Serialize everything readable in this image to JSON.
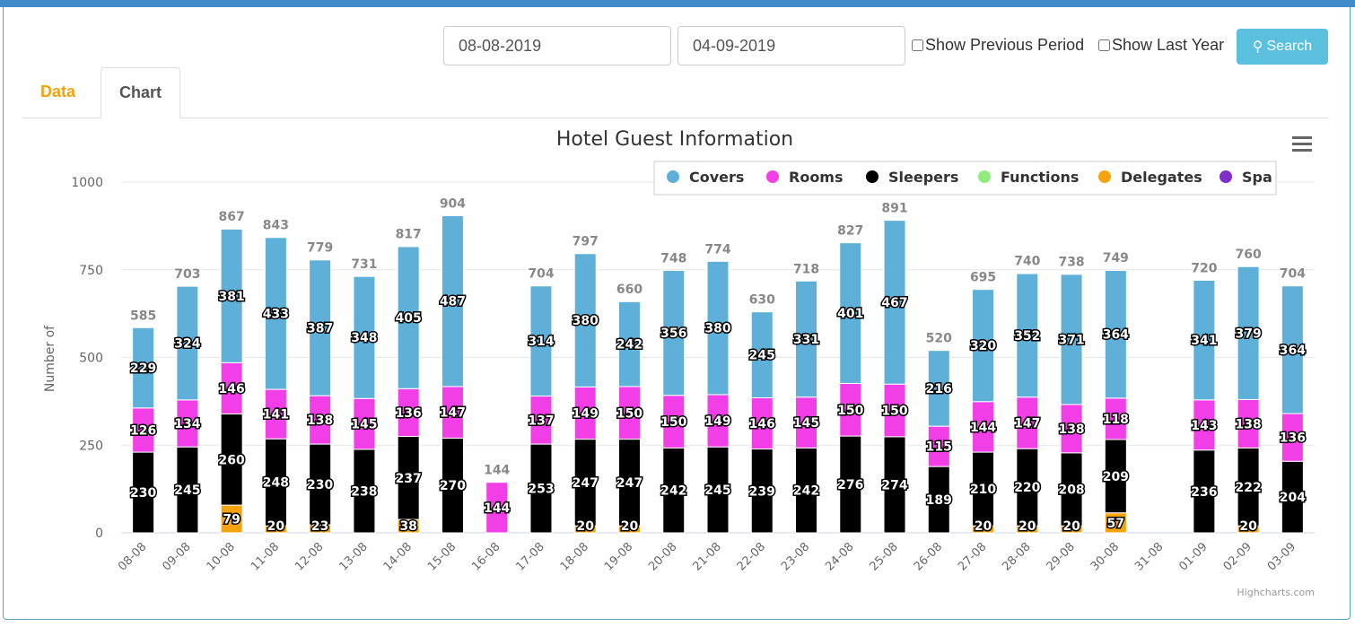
{
  "header": {
    "start_date": "08-08-2019",
    "end_date": "04-09-2019",
    "show_previous_period": "Show Previous Period",
    "show_last_year": "Show Last Year",
    "search_label": "Search"
  },
  "tabs": [
    {
      "label": "Data"
    },
    {
      "label": "Chart"
    }
  ],
  "credits": "Highcharts.com",
  "chart_data": {
    "type": "bar",
    "stacked": true,
    "title": "Hotel Guest Information",
    "ylabel": "Number of",
    "xlabel": "",
    "ylim": [
      0,
      1000
    ],
    "yticks": [
      0,
      250,
      500,
      750,
      1000
    ],
    "grid": true,
    "legend_position": "top-right",
    "categories": [
      "08-08",
      "09-08",
      "10-08",
      "11-08",
      "12-08",
      "13-08",
      "14-08",
      "15-08",
      "16-08",
      "17-08",
      "18-08",
      "19-08",
      "20-08",
      "21-08",
      "22-08",
      "23-08",
      "24-08",
      "25-08",
      "26-08",
      "27-08",
      "28-08",
      "29-08",
      "30-08",
      "31-08",
      "01-09",
      "02-09",
      "03-09"
    ],
    "series": [
      {
        "name": "Covers",
        "color": "#5eb0d8",
        "values": [
          229,
          324,
          381,
          433,
          387,
          348,
          405,
          487,
          0,
          314,
          380,
          242,
          356,
          380,
          245,
          331,
          401,
          467,
          216,
          320,
          352,
          371,
          364,
          0,
          341,
          379,
          364
        ]
      },
      {
        "name": "Rooms",
        "color": "#f23ee6",
        "values": [
          126,
          134,
          146,
          141,
          138,
          145,
          136,
          147,
          144,
          137,
          149,
          150,
          150,
          149,
          146,
          145,
          150,
          150,
          115,
          144,
          147,
          138,
          118,
          0,
          143,
          138,
          136
        ]
      },
      {
        "name": "Sleepers",
        "color": "#000000",
        "values": [
          230,
          245,
          260,
          248,
          230,
          238,
          237,
          270,
          0,
          253,
          247,
          247,
          242,
          245,
          239,
          242,
          276,
          274,
          189,
          210,
          220,
          208,
          209,
          0,
          236,
          222,
          204
        ]
      },
      {
        "name": "Functions",
        "color": "#90ed7d",
        "values": [
          0,
          0,
          0,
          0,
          0,
          0,
          0,
          0,
          0,
          0,
          0,
          0,
          0,
          0,
          0,
          0,
          0,
          0,
          0,
          0,
          0,
          0,
          0,
          0,
          0,
          0,
          0
        ]
      },
      {
        "name": "Delegates",
        "color": "#f7a30c",
        "values": [
          0,
          0,
          79,
          20,
          23,
          0,
          38,
          0,
          0,
          0,
          20,
          20,
          0,
          0,
          0,
          0,
          0,
          0,
          0,
          20,
          20,
          20,
          57,
          0,
          0,
          20,
          0
        ]
      },
      {
        "name": "Spa",
        "color": "#7e2fcc",
        "values": [
          0,
          0,
          0,
          0,
          0,
          0,
          0,
          0,
          0,
          0,
          0,
          0,
          0,
          0,
          0,
          0,
          0,
          0,
          0,
          0,
          0,
          0,
          0,
          0,
          0,
          0,
          0
        ]
      }
    ],
    "totals": [
      585,
      703,
      867,
      843,
      779,
      731,
      817,
      904,
      144,
      704,
      797,
      660,
      748,
      774,
      630,
      718,
      827,
      891,
      520,
      695,
      740,
      738,
      749,
      null,
      720,
      760,
      704
    ]
  }
}
